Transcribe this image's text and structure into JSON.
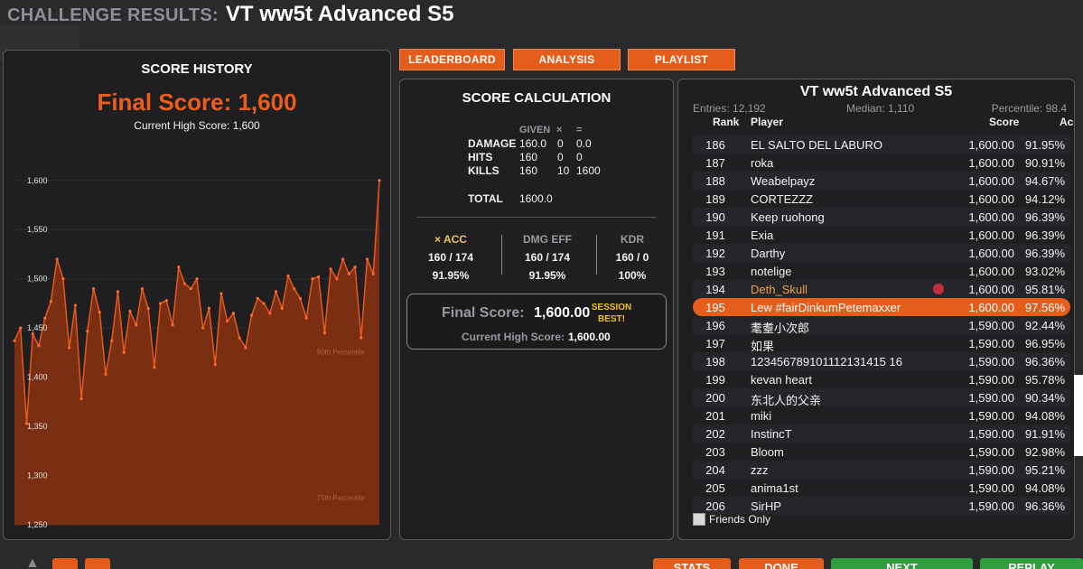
{
  "header": {
    "prefix": "CHALLENGE RESULTS:",
    "title": "VT ww5t Advanced S5"
  },
  "tabs": {
    "leaderboard": "LEADERBOARD",
    "analysis": "ANALYSIS",
    "playlist": "PLAYLIST"
  },
  "history": {
    "title": "SCORE HISTORY",
    "final_score": "Final Score: 1,600",
    "high_score": "Current High Score: 1,600"
  },
  "chart_data": {
    "type": "area",
    "title": "SCORE HISTORY",
    "ylim": [
      1250,
      1620
    ],
    "yticks": [
      "1,600",
      "1,550",
      "1,500",
      "1,450",
      "1,400",
      "1,350",
      "1,300",
      "1,250"
    ],
    "ytick_values": [
      1600,
      1550,
      1500,
      1450,
      1400,
      1350,
      1300,
      1250
    ],
    "reference_lines": [
      {
        "label": "90th Percentile",
        "value": 1423
      },
      {
        "label": "75th Percentile",
        "value": 1275
      }
    ],
    "values": [
      1437,
      1450,
      1353,
      1444,
      1432,
      1460,
      1477,
      1520,
      1500,
      1430,
      1473,
      1378,
      1447,
      1490,
      1466,
      1403,
      1437,
      1487,
      1425,
      1467,
      1453,
      1490,
      1470,
      1410,
      1475,
      1478,
      1453,
      1512,
      1495,
      1490,
      1500,
      1450,
      1470,
      1413,
      1485,
      1457,
      1465,
      1440,
      1430,
      1463,
      1480,
      1475,
      1465,
      1487,
      1470,
      1503,
      1490,
      1480,
      1460,
      1500,
      1502,
      1445,
      1510,
      1500,
      1520,
      1505,
      1512,
      1440,
      1520,
      1505,
      1600
    ]
  },
  "calc": {
    "title": "SCORE CALCULATION",
    "col_given": "GIVEN",
    "col_times": "×",
    "col_eq": "=",
    "rows": [
      {
        "label": "DAMAGE",
        "given": "160.0",
        "mult": "0",
        "result": "0.0"
      },
      {
        "label": "HITS",
        "given": "160",
        "mult": "0",
        "result": "0"
      },
      {
        "label": "KILLS",
        "given": "160",
        "mult": "10",
        "result": "1600"
      }
    ],
    "total_label": "TOTAL",
    "total_value": "1600.0",
    "stats": [
      {
        "head": "× ACC",
        "value": "160 / 174",
        "pct": "91.95%"
      },
      {
        "head": "DMG EFF",
        "value": "160 / 174",
        "pct": "91.95%"
      },
      {
        "head": "KDR",
        "value": "160 / 0",
        "pct": "100%"
      }
    ],
    "final_label": "Final Score:",
    "final_value": "1,600.00",
    "session_best_1": "SESSION",
    "session_best_2": "BEST!",
    "high_label": "Current High Score:",
    "high_value": "1,600.00"
  },
  "leaderboard": {
    "title": "VT ww5t Advanced S5",
    "entries": "Entries: 12,192",
    "median": "Median: 1,110",
    "percentile": "Percentile: 98.4",
    "col_rank": "Rank",
    "col_player": "Player",
    "col_score": "Score",
    "col_acc": "Acc",
    "rows": [
      {
        "rank": "186",
        "player": "EL SALTO DEL LABURO",
        "score": "1,600.00",
        "acc": "91.95%"
      },
      {
        "rank": "187",
        "player": "roka",
        "score": "1,600.00",
        "acc": "90.91%"
      },
      {
        "rank": "188",
        "player": "Weabelpayz",
        "score": "1,600.00",
        "acc": "94.67%"
      },
      {
        "rank": "189",
        "player": "CORTEZZZ",
        "score": "1,600.00",
        "acc": "94.12%"
      },
      {
        "rank": "190",
        "player": "Keep ruohong",
        "score": "1,600.00",
        "acc": "96.39%"
      },
      {
        "rank": "191",
        "player": "Exia",
        "score": "1,600.00",
        "acc": "96.39%"
      },
      {
        "rank": "192",
        "player": "Darthy",
        "score": "1,600.00",
        "acc": "96.39%"
      },
      {
        "rank": "193",
        "player": "notelige",
        "score": "1,600.00",
        "acc": "93.02%"
      },
      {
        "rank": "194",
        "player": "Deth_Skull",
        "score": "1,600.00",
        "acc": "95.81%"
      },
      {
        "rank": "195",
        "player": "Lew  #fairDinkumPetemaxxer",
        "score": "1,600.00",
        "acc": "97.56%"
      },
      {
        "rank": "196",
        "player": "耄耋小次郎",
        "score": "1,590.00",
        "acc": "92.44%"
      },
      {
        "rank": "197",
        "player": "如果",
        "score": "1,590.00",
        "acc": "96.95%"
      },
      {
        "rank": "198",
        "player": "123456789101112131415 16",
        "score": "1,590.00",
        "acc": "96.36%"
      },
      {
        "rank": "199",
        "player": "kevan heart",
        "score": "1,590.00",
        "acc": "95.78%"
      },
      {
        "rank": "200",
        "player": "东北人的父亲",
        "score": "1,590.00",
        "acc": "90.34%"
      },
      {
        "rank": "201",
        "player": "miki",
        "score": "1,590.00",
        "acc": "94.08%"
      },
      {
        "rank": "202",
        "player": "InstincT",
        "score": "1,590.00",
        "acc": "91.91%"
      },
      {
        "rank": "203",
        "player": "Bloom",
        "score": "1,590.00",
        "acc": "92.98%"
      },
      {
        "rank": "204",
        "player": "zzz",
        "score": "1,590.00",
        "acc": "95.21%"
      },
      {
        "rank": "205",
        "player": "anima1st",
        "score": "1,590.00",
        "acc": "94.08%"
      },
      {
        "rank": "206",
        "player": "SirHP",
        "score": "1,590.00",
        "acc": "96.36%"
      }
    ],
    "friends_only": "Friends Only"
  },
  "bottom": {
    "stats": "STATS",
    "done": "DONE",
    "next": "NEXT",
    "replay": "REPLAY"
  },
  "colors": {
    "accent": "#e45d1a",
    "green": "#2e9e3e",
    "panel": "#1f1f21"
  }
}
